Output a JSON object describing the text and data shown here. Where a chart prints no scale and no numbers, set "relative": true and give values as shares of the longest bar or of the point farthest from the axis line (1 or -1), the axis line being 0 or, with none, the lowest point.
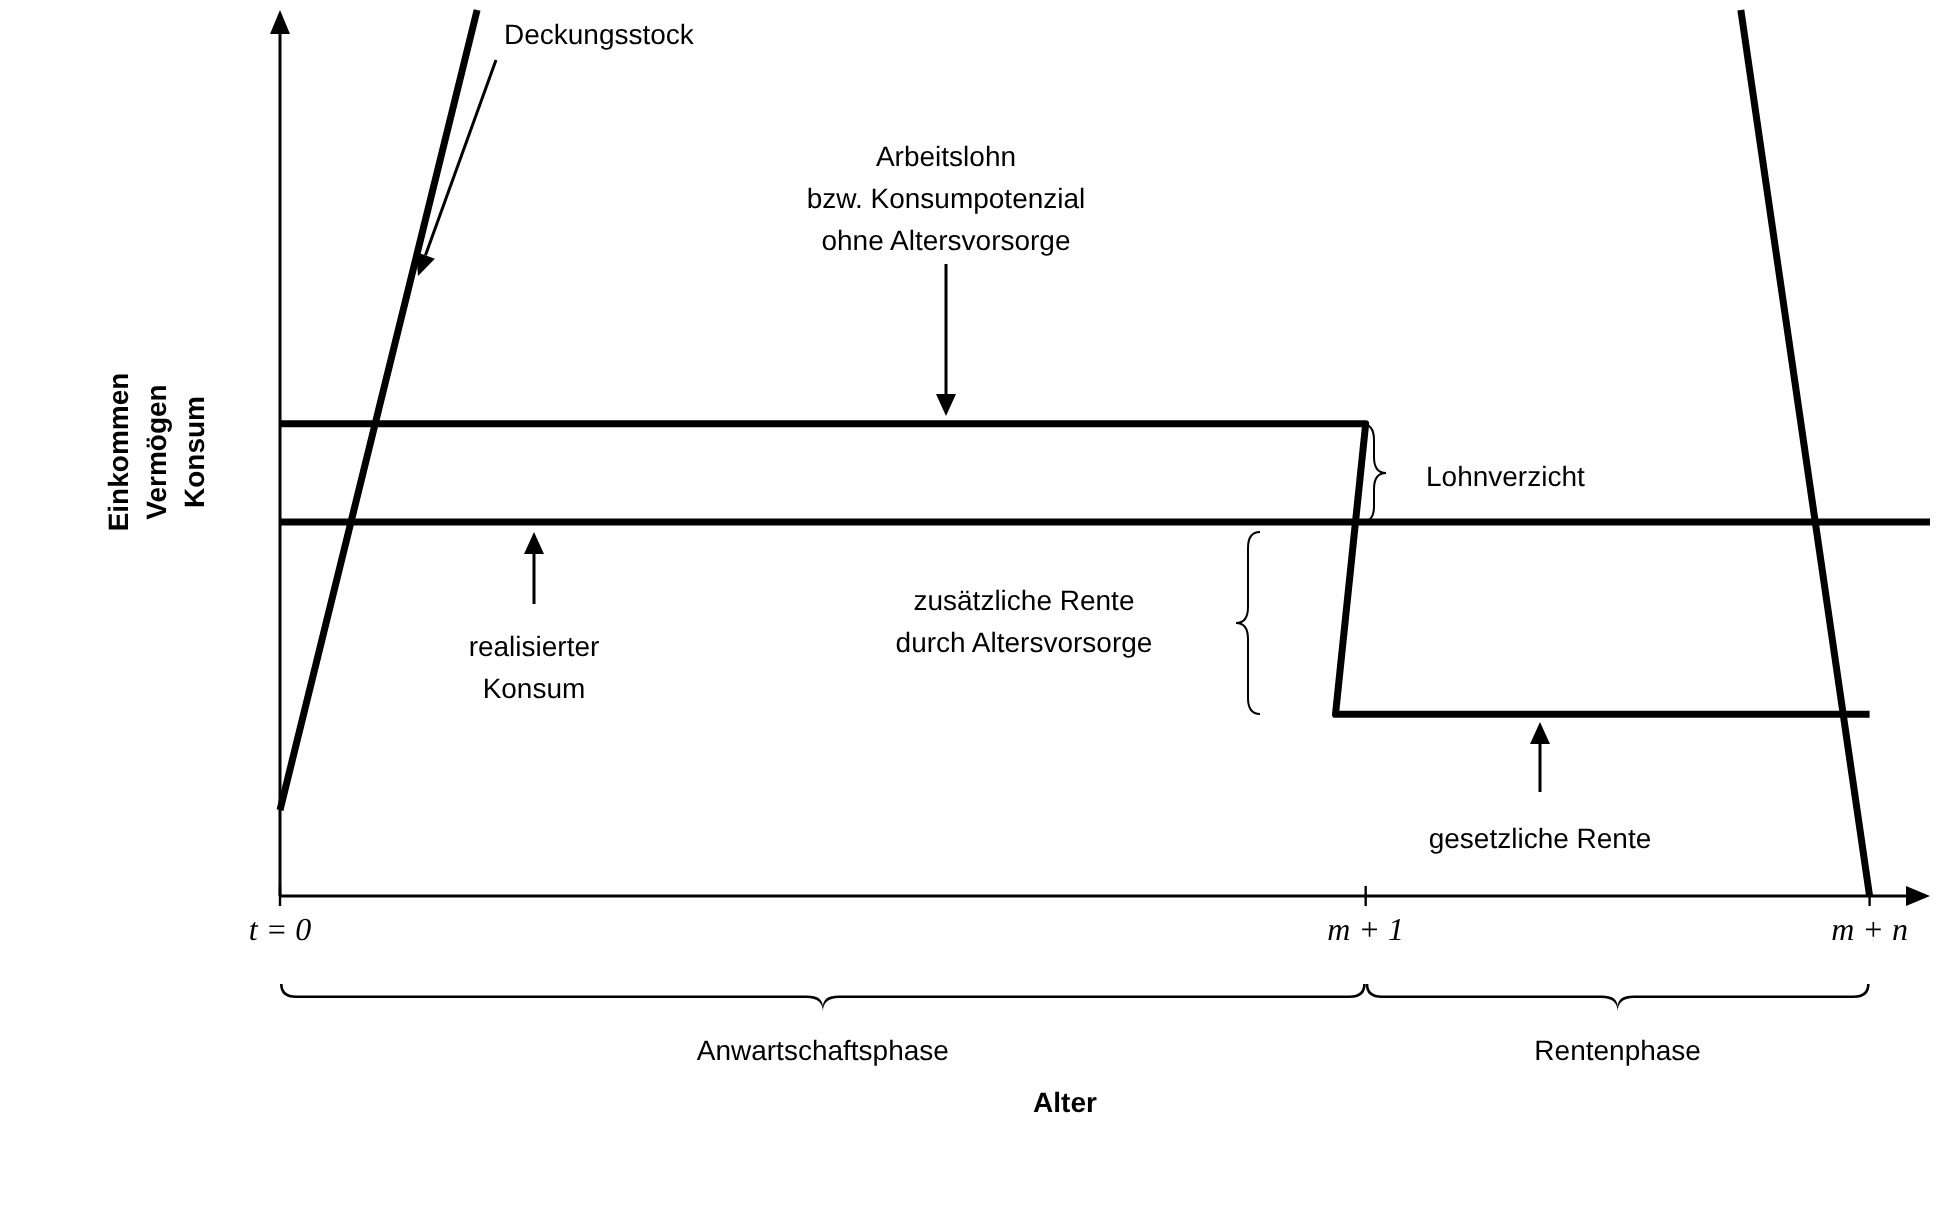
{
  "chart_data": {
    "type": "line",
    "relative": true,
    "xlabel": "Alter",
    "ylabel": "Einkommen\nVermögen\nKonsum",
    "xlim": [
      0,
      1.038
    ],
    "xticks": [
      {
        "value": 0,
        "label": "t = 0"
      },
      {
        "value": 0.683,
        "label": "m + 1"
      },
      {
        "value": 1,
        "label": "m + n"
      }
    ],
    "grid": false,
    "series": [
      {
        "color": "#000000",
        "x": [
          0,
          0.124,
          0.5,
          0.919,
          1
        ],
        "values": [
          0.097,
          1,
          null,
          1,
          0
        ]
      },
      {
        "color": "#000000",
        "x": [
          0,
          0.683,
          0.664,
          1
        ],
        "values": [
          0.533,
          0.533,
          0.205,
          0.205
        ]
      },
      {
        "color": "#000000",
        "x": [
          0,
          1.038
        ],
        "values": [
          0.422,
          0.422
        ]
      }
    ],
    "annotations": [
      "Deckungsstock",
      "Arbeitslohn\nbzw. Konsumpotenzial\nohne Altersvorsorge",
      "realisierter\nKonsum",
      "Lohnverzicht",
      "zusätzliche Rente\ndurch Altersvorsorge",
      "gesetzliche Rente",
      "Anwartschaftsphase",
      "Rentenphase"
    ]
  }
}
